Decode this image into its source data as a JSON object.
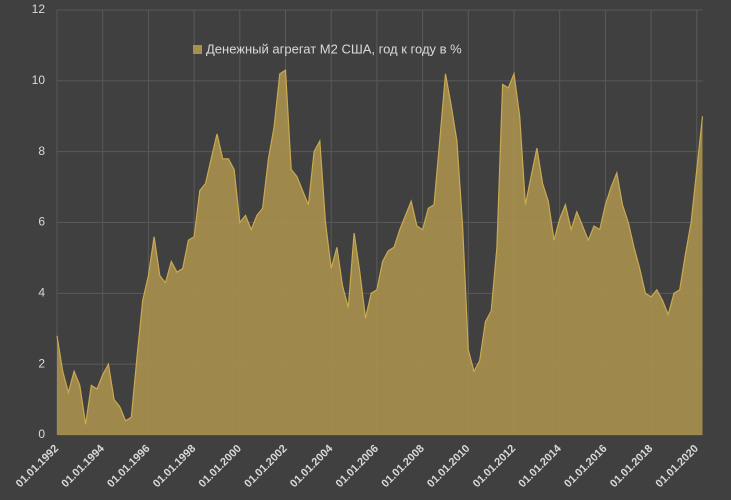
{
  "chart_data": {
    "type": "area",
    "x": [
      "01.01.1992",
      "01.04.1992",
      "01.07.1992",
      "01.10.1992",
      "01.01.1993",
      "01.04.1993",
      "01.07.1993",
      "01.10.1993",
      "01.01.1994",
      "01.04.1994",
      "01.07.1994",
      "01.10.1994",
      "01.01.1995",
      "01.04.1995",
      "01.07.1995",
      "01.10.1995",
      "01.01.1996",
      "01.04.1996",
      "01.07.1996",
      "01.10.1996",
      "01.01.1997",
      "01.04.1997",
      "01.07.1997",
      "01.10.1997",
      "01.01.1998",
      "01.04.1998",
      "01.07.1998",
      "01.10.1998",
      "01.01.1999",
      "01.04.1999",
      "01.07.1999",
      "01.10.1999",
      "01.01.2000",
      "01.04.2000",
      "01.07.2000",
      "01.10.2000",
      "01.01.2001",
      "01.04.2001",
      "01.07.2001",
      "01.10.2001",
      "01.01.2002",
      "01.04.2002",
      "01.07.2002",
      "01.10.2002",
      "01.01.2003",
      "01.04.2003",
      "01.07.2003",
      "01.10.2003",
      "01.01.2004",
      "01.04.2004",
      "01.07.2004",
      "01.10.2004",
      "01.01.2005",
      "01.04.2005",
      "01.07.2005",
      "01.10.2005",
      "01.01.2006",
      "01.04.2006",
      "01.07.2006",
      "01.10.2006",
      "01.01.2007",
      "01.04.2007",
      "01.07.2007",
      "01.10.2007",
      "01.01.2008",
      "01.04.2008",
      "01.07.2008",
      "01.10.2008",
      "01.01.2009",
      "01.04.2009",
      "01.07.2009",
      "01.10.2009",
      "01.01.2010",
      "01.04.2010",
      "01.07.2010",
      "01.10.2010",
      "01.01.2011",
      "01.04.2011",
      "01.07.2011",
      "01.10.2011",
      "01.01.2012",
      "01.04.2012",
      "01.07.2012",
      "01.10.2012",
      "01.01.2013",
      "01.04.2013",
      "01.07.2013",
      "01.10.2013",
      "01.01.2014",
      "01.04.2014",
      "01.07.2014",
      "01.10.2014",
      "01.01.2015",
      "01.04.2015",
      "01.07.2015",
      "01.10.2015",
      "01.01.2016",
      "01.04.2016",
      "01.07.2016",
      "01.10.2016",
      "01.01.2017",
      "01.04.2017",
      "01.07.2017",
      "01.10.2017",
      "01.01.2018",
      "01.04.2018",
      "01.07.2018",
      "01.10.2018",
      "01.01.2019",
      "01.04.2019",
      "01.07.2019",
      "01.10.2019",
      "01.01.2020",
      "01.04.2020"
    ],
    "series": [
      {
        "name": "Денежный агрегат M2 США, год к году в %",
        "color": "#a8904e",
        "values": [
          2.8,
          1.8,
          1.2,
          1.8,
          1.4,
          0.3,
          1.4,
          1.3,
          1.7,
          2.0,
          1.0,
          0.8,
          0.4,
          0.5,
          2.2,
          3.8,
          4.5,
          5.6,
          4.5,
          4.3,
          4.9,
          4.6,
          4.7,
          5.5,
          5.6,
          6.9,
          7.1,
          7.8,
          8.5,
          7.8,
          7.8,
          7.5,
          6.0,
          6.2,
          5.8,
          6.2,
          6.4,
          7.8,
          8.7,
          10.2,
          10.3,
          7.5,
          7.3,
          6.9,
          6.5,
          8.0,
          8.3,
          6.0,
          4.7,
          5.3,
          4.2,
          3.6,
          5.7,
          4.6,
          3.3,
          4.0,
          4.1,
          4.9,
          5.2,
          5.3,
          5.8,
          6.2,
          6.6,
          5.9,
          5.8,
          6.4,
          6.5,
          8.3,
          10.2,
          9.3,
          8.3,
          5.9,
          2.4,
          1.8,
          2.1,
          3.2,
          3.5,
          5.3,
          9.9,
          9.8,
          10.2,
          9.0,
          6.5,
          7.3,
          8.1,
          7.1,
          6.6,
          5.5,
          6.1,
          6.5,
          5.8,
          6.3,
          5.9,
          5.5,
          5.9,
          5.8,
          6.5,
          7.0,
          7.4,
          6.5,
          6.0,
          5.3,
          4.7,
          4.0,
          3.9,
          4.1,
          3.8,
          3.4,
          4.0,
          4.1,
          5.1,
          6.0,
          7.5,
          9.0
        ]
      }
    ],
    "xlim": [
      "01.01.1992",
      "01.04.2020"
    ],
    "xticks": [
      "01.01.1992",
      "01.01.1994",
      "01.01.1996",
      "01.01.1998",
      "01.01.2000",
      "01.01.2002",
      "01.01.2004",
      "01.01.2006",
      "01.01.2008",
      "01.01.2010",
      "01.01.2012",
      "01.01.2014",
      "01.01.2016",
      "01.01.2018",
      "01.01.2020"
    ],
    "ylim": [
      0,
      12
    ],
    "yticks": [
      0,
      2,
      4,
      6,
      8,
      10,
      12
    ],
    "grid": true,
    "legend": "top"
  }
}
